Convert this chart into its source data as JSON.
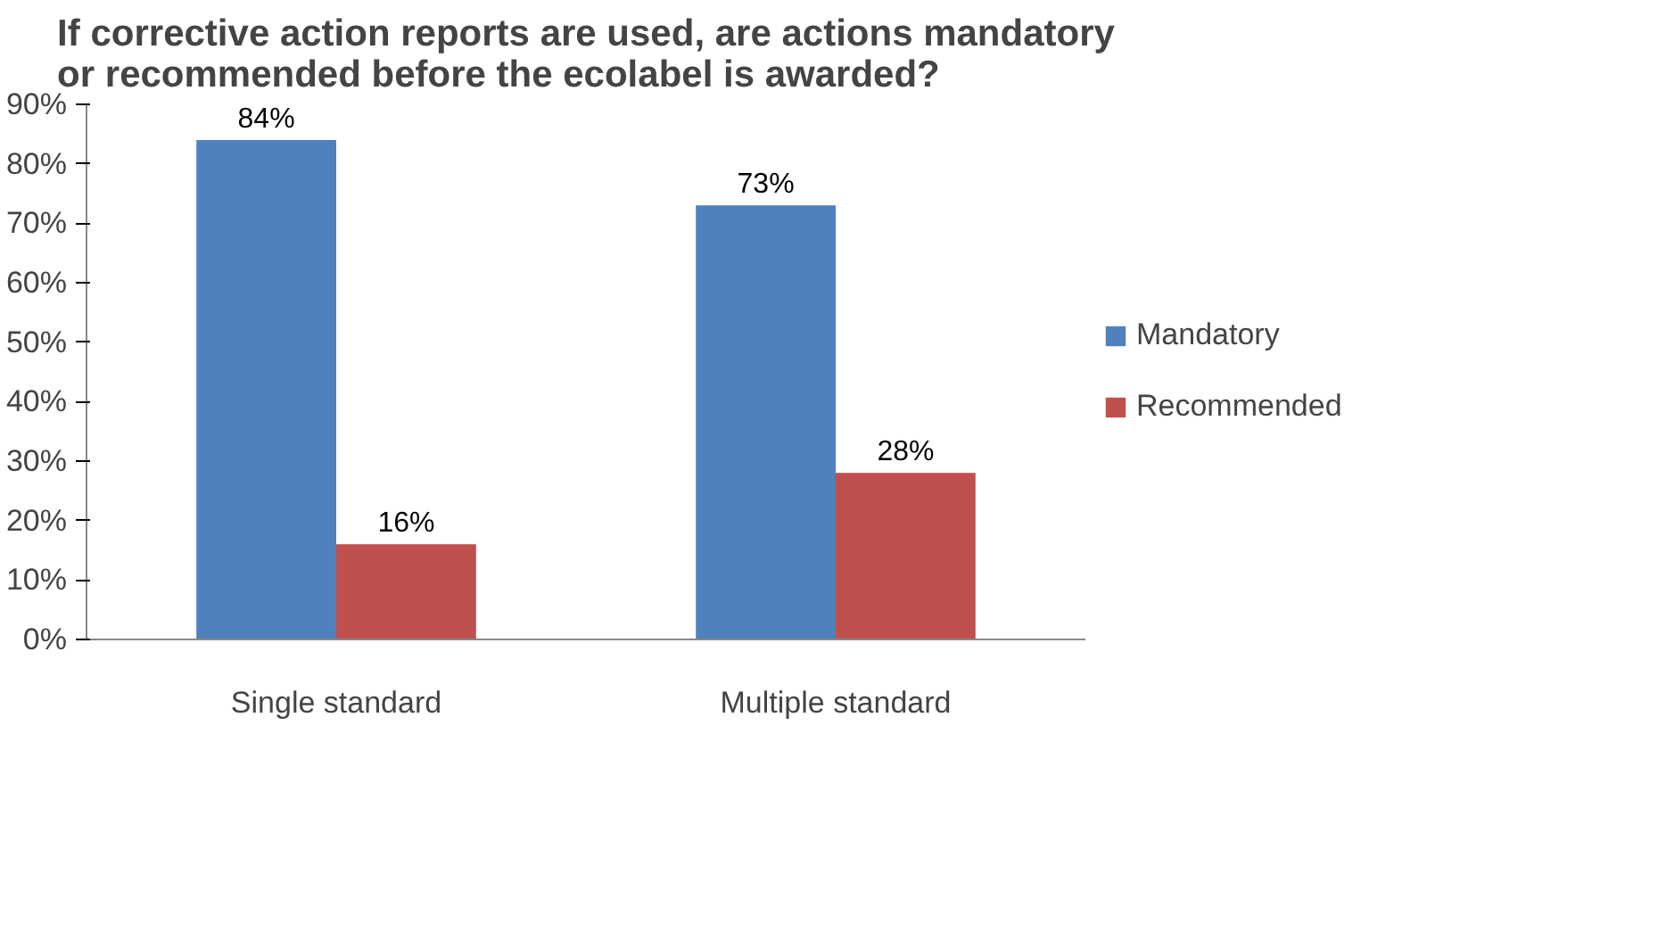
{
  "chart_data": {
    "type": "bar",
    "title": "If corrective action reports are used, are actions mandatory or recommended before the ecolabel is awarded?",
    "categories": [
      "Single standard",
      "Multiple standard"
    ],
    "series": [
      {
        "name": "Mandatory",
        "color": "#4f81bd",
        "values": [
          84,
          73
        ],
        "value_labels": [
          "84%",
          "73%"
        ]
      },
      {
        "name": "Recommended",
        "color": "#c0504d",
        "values": [
          16,
          28
        ],
        "value_labels": [
          "16%",
          "28%"
        ]
      }
    ],
    "ylim": [
      0,
      90
    ],
    "yticks": [
      {
        "value": 0,
        "label": "0%"
      },
      {
        "value": 10,
        "label": "10%"
      },
      {
        "value": 20,
        "label": "20%"
      },
      {
        "value": 30,
        "label": "30%"
      },
      {
        "value": 40,
        "label": "40%"
      },
      {
        "value": 50,
        "label": "50%"
      },
      {
        "value": 60,
        "label": "60%"
      },
      {
        "value": 70,
        "label": "70%"
      },
      {
        "value": 80,
        "label": "80%"
      },
      {
        "value": 90,
        "label": "90%"
      }
    ],
    "grid": false,
    "legend": "right"
  }
}
